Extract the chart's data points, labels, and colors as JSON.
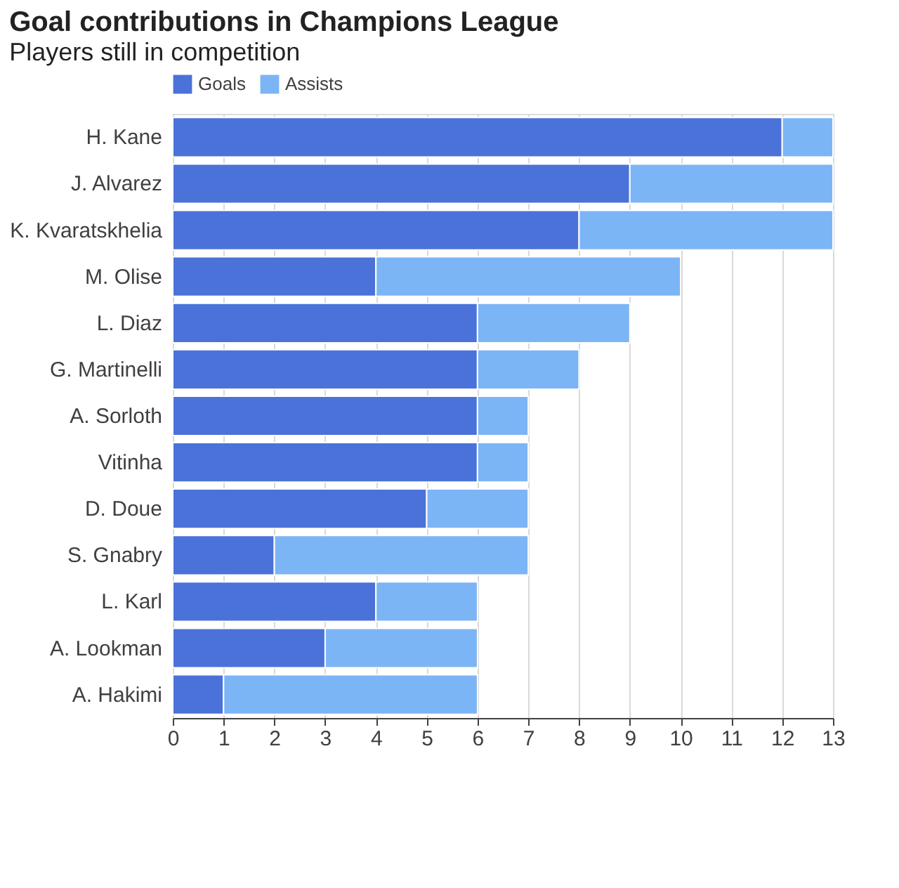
{
  "chart_data": {
    "type": "bar",
    "orientation": "horizontal",
    "stacked": true,
    "title": "Goal contributions in Champions League",
    "subtitle": "Players still in competition",
    "categories": [
      "H. Kane",
      "J. Alvarez",
      "K. Kvaratskhelia",
      "M. Olise",
      "L. Diaz",
      "G. Martinelli",
      "A. Sorloth",
      "Vitinha",
      "D. Doue",
      "S. Gnabry",
      "L. Karl",
      "A. Lookman",
      "A. Hakimi"
    ],
    "series": [
      {
        "name": "Goals",
        "color": "#4a72d9",
        "values": [
          12,
          9,
          8,
          4,
          6,
          6,
          6,
          6,
          5,
          2,
          4,
          3,
          1
        ]
      },
      {
        "name": "Assists",
        "color": "#7cb5f5",
        "values": [
          1,
          4,
          5,
          6,
          3,
          2,
          1,
          1,
          2,
          5,
          2,
          3,
          5
        ]
      }
    ],
    "xlim": [
      0,
      13
    ],
    "xticks": [
      0,
      1,
      2,
      3,
      4,
      5,
      6,
      7,
      8,
      9,
      10,
      11,
      12,
      13
    ],
    "grid": "x",
    "legend": "top left"
  }
}
